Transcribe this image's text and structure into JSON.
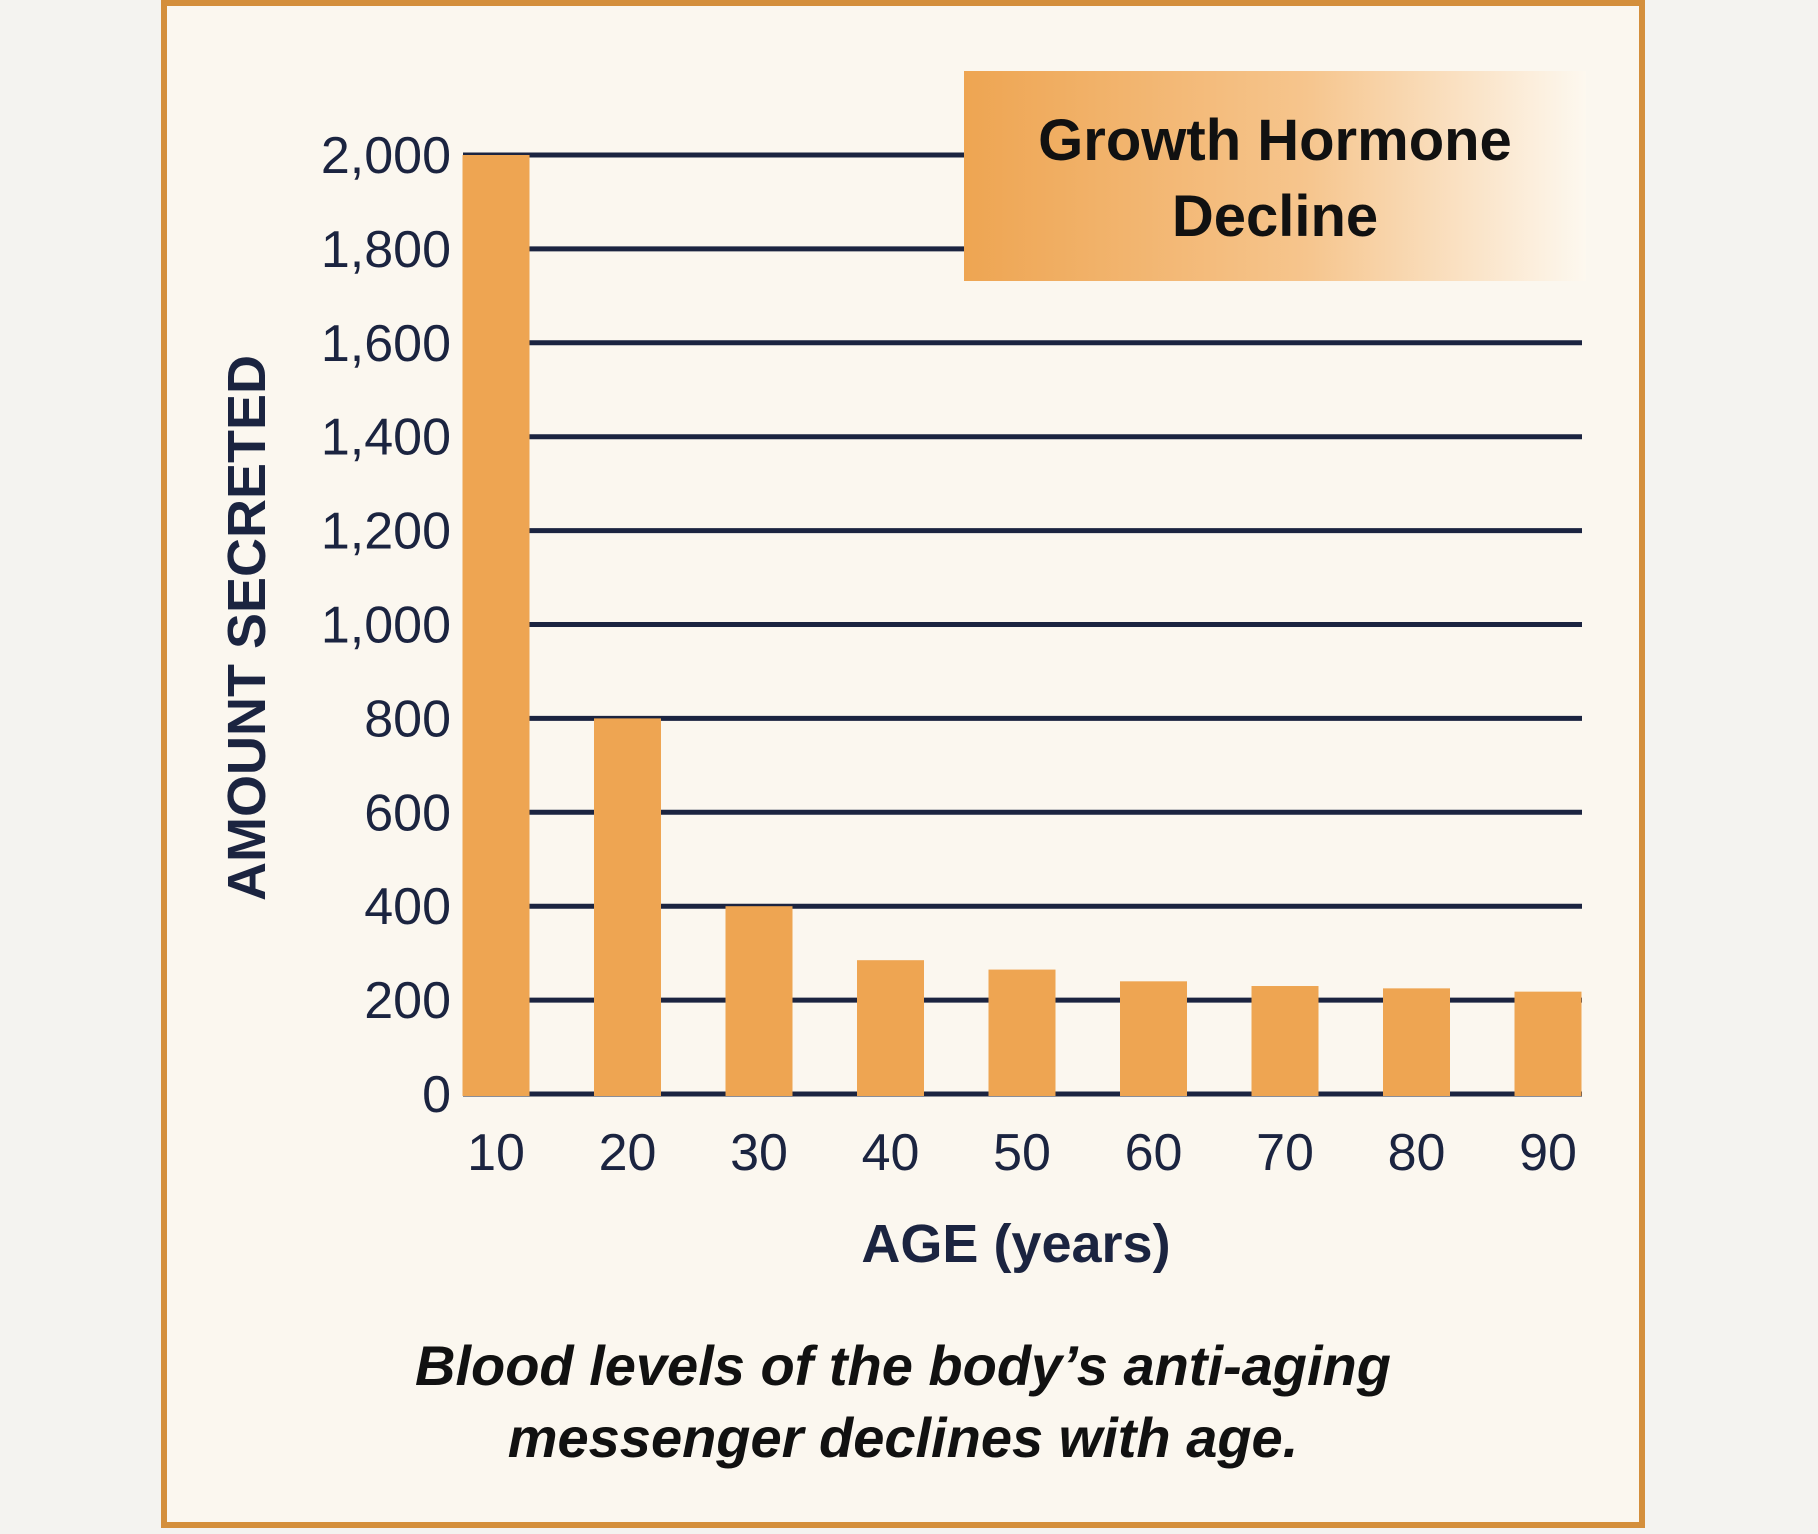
{
  "colors": {
    "bar": "#eea552",
    "grid": "#1b2440",
    "frame": "#d48f3c",
    "panel": "#fbf7ef",
    "title_gradient_start": "#eea552",
    "title_gradient_end": "#fdf8ef"
  },
  "caption": {
    "line1": "Blood levels of the body’s anti-aging",
    "line2": "messenger declines with age."
  },
  "chart_data": {
    "type": "bar",
    "title_lines": [
      "Growth Hormone",
      "Decline"
    ],
    "xlabel": "AGE (years)",
    "ylabel": "AMOUNT SECRETED",
    "categories": [
      "10",
      "20",
      "30",
      "40",
      "50",
      "60",
      "70",
      "80",
      "90"
    ],
    "values": [
      2000,
      800,
      400,
      285,
      265,
      240,
      230,
      225,
      218
    ],
    "ylim": [
      0,
      2000
    ],
    "yticks": [
      0,
      200,
      400,
      600,
      800,
      1000,
      1200,
      1400,
      1600,
      1800,
      2000
    ],
    "ytick_labels": [
      "0",
      "200",
      "400",
      "600",
      "800",
      "1,000",
      "1,200",
      "1,400",
      "1,600",
      "1,800",
      "2,000"
    ],
    "grid": true,
    "legend": "none"
  }
}
